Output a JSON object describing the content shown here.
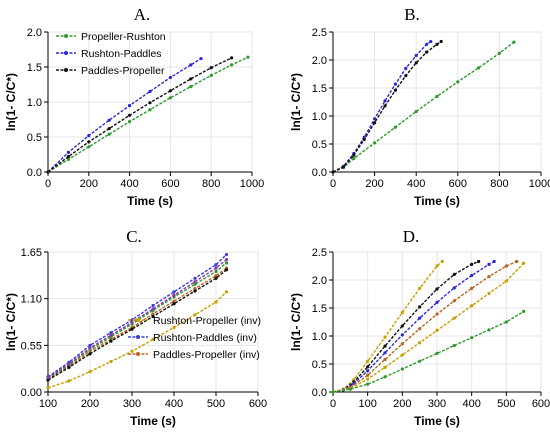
{
  "chart_data": [
    {
      "type": "line",
      "panel": "A.",
      "xlabel": "Time (s)",
      "ylabel": "ln(1- C/C*)",
      "xlim": [
        0,
        1000
      ],
      "ylim": [
        0,
        2.0
      ],
      "xticks": [
        0,
        200,
        400,
        600,
        800,
        1000
      ],
      "yticks": [
        0.0,
        0.5,
        1.0,
        1.5,
        2.0
      ],
      "ytick_labels": [
        "0.0",
        "0.5",
        "1.0",
        "1.5",
        "2.0"
      ],
      "grid": true,
      "legend": "top-left",
      "series": [
        {
          "name": "Propeller-Rushton",
          "color": "#2e9a2e",
          "x": [
            0,
            100,
            200,
            300,
            400,
            500,
            600,
            700,
            800,
            900,
            980
          ],
          "y": [
            0,
            0.18,
            0.36,
            0.54,
            0.72,
            0.89,
            1.06,
            1.22,
            1.38,
            1.53,
            1.64
          ]
        },
        {
          "name": "Rushton-Paddles",
          "color": "#2a2ad0",
          "x": [
            0,
            100,
            200,
            300,
            400,
            500,
            600,
            700,
            750
          ],
          "y": [
            0,
            0.28,
            0.52,
            0.74,
            0.95,
            1.15,
            1.35,
            1.53,
            1.62
          ]
        },
        {
          "name": "Paddles-Propeller",
          "color": "#111111",
          "x": [
            0,
            100,
            200,
            300,
            400,
            500,
            600,
            700,
            800,
            900
          ],
          "y": [
            0,
            0.22,
            0.43,
            0.62,
            0.81,
            0.99,
            1.16,
            1.33,
            1.49,
            1.63
          ]
        }
      ]
    },
    {
      "type": "line",
      "panel": "B.",
      "xlabel": "Time (s)",
      "ylabel": "ln(1- C/C*)",
      "xlim": [
        0,
        1000
      ],
      "ylim": [
        0,
        2.5
      ],
      "xticks": [
        0,
        200,
        400,
        600,
        800,
        1000
      ],
      "yticks": [
        0.0,
        0.5,
        1.0,
        1.5,
        2.0,
        2.5
      ],
      "ytick_labels": [
        "0.0",
        "0.5",
        "1.0",
        "1.5",
        "2.0",
        "2.5"
      ],
      "grid": true,
      "legend": "",
      "series": [
        {
          "color": "#2e9a2e",
          "x": [
            0,
            50,
            100,
            200,
            300,
            400,
            500,
            600,
            700,
            800,
            870
          ],
          "y": [
            0,
            0.08,
            0.24,
            0.52,
            0.8,
            1.08,
            1.35,
            1.61,
            1.86,
            2.12,
            2.32
          ]
        },
        {
          "color": "#2a2ad0",
          "x": [
            0,
            50,
            100,
            150,
            200,
            250,
            300,
            350,
            400,
            450,
            470
          ],
          "y": [
            0,
            0.1,
            0.33,
            0.62,
            0.95,
            1.27,
            1.57,
            1.85,
            2.08,
            2.28,
            2.33
          ]
        },
        {
          "color": "#111111",
          "x": [
            0,
            50,
            100,
            150,
            200,
            250,
            300,
            350,
            400,
            450,
            500,
            520
          ],
          "y": [
            0,
            0.09,
            0.3,
            0.58,
            0.88,
            1.18,
            1.46,
            1.72,
            1.95,
            2.14,
            2.28,
            2.33
          ]
        }
      ]
    },
    {
      "type": "line",
      "panel": "C.",
      "xlabel": "Time (s)",
      "ylabel": "ln(1- C/C*)",
      "xlim": [
        100,
        600
      ],
      "ylim": [
        0,
        1.65
      ],
      "xticks": [
        100,
        200,
        300,
        400,
        500,
        600
      ],
      "yticks": [
        0.0,
        0.55,
        1.1,
        1.65
      ],
      "ytick_labels": [
        "0.00",
        "0.55",
        "1.10",
        "1.65"
      ],
      "grid": true,
      "legend": "bottom-right",
      "series": [
        {
          "name": "Rushton-Propeller (inv)",
          "color": "#c8a000",
          "x": [
            100,
            150,
            200,
            250,
            300,
            350,
            400,
            450,
            500,
            525
          ],
          "y": [
            0.05,
            0.13,
            0.24,
            0.36,
            0.48,
            0.62,
            0.76,
            0.91,
            1.06,
            1.18
          ]
        },
        {
          "name": "Rushton-Paddles (inv)",
          "color": "#3a3ad8",
          "x": [
            100,
            150,
            200,
            250,
            300,
            350,
            400,
            450,
            500,
            525
          ],
          "y": [
            0.18,
            0.35,
            0.55,
            0.7,
            0.85,
            1.02,
            1.18,
            1.34,
            1.5,
            1.62
          ]
        },
        {
          "name": "Paddles-Propeller (inv)",
          "color": "#b5651d",
          "x": [
            100,
            150,
            200,
            250,
            300,
            350,
            400,
            450,
            500,
            525
          ],
          "y": [
            0.15,
            0.3,
            0.48,
            0.62,
            0.76,
            0.92,
            1.07,
            1.22,
            1.37,
            1.46
          ]
        },
        {
          "color": "#2e9a2e",
          "x": [
            100,
            150,
            200,
            250,
            300,
            350,
            400,
            450,
            500,
            525
          ],
          "y": [
            0.16,
            0.32,
            0.5,
            0.65,
            0.8,
            0.96,
            1.12,
            1.27,
            1.42,
            1.52
          ]
        },
        {
          "color": "#111111",
          "x": [
            100,
            150,
            200,
            250,
            300,
            350,
            400,
            450,
            500,
            525
          ],
          "y": [
            0.14,
            0.29,
            0.45,
            0.6,
            0.74,
            0.89,
            1.04,
            1.19,
            1.34,
            1.44
          ]
        },
        {
          "color": "#8a3aa8",
          "x": [
            100,
            150,
            200,
            250,
            300,
            350,
            400,
            450,
            500,
            525
          ],
          "y": [
            0.17,
            0.33,
            0.52,
            0.67,
            0.82,
            0.98,
            1.14,
            1.3,
            1.46,
            1.56
          ]
        }
      ]
    },
    {
      "type": "line",
      "panel": "D.",
      "xlabel": "Time (s)",
      "ylabel": "ln(1- C/C*)",
      "xlim": [
        0,
        600
      ],
      "ylim": [
        0,
        2.5
      ],
      "xticks": [
        0,
        100,
        200,
        300,
        400,
        500,
        600
      ],
      "yticks": [
        0.0,
        0.5,
        1.0,
        1.5,
        2.0,
        2.5
      ],
      "ytick_labels": [
        "0.0",
        "0.5",
        "1.0",
        "1.5",
        "2.0",
        "2.5"
      ],
      "grid": true,
      "legend": "",
      "series": [
        {
          "color": "#c8a000",
          "x": [
            0,
            30,
            60,
            100,
            150,
            200,
            250,
            300,
            315
          ],
          "y": [
            0,
            0.05,
            0.22,
            0.55,
            0.98,
            1.42,
            1.85,
            2.25,
            2.33
          ]
        },
        {
          "color": "#111111",
          "x": [
            0,
            30,
            60,
            100,
            150,
            200,
            250,
            300,
            350,
            400,
            420
          ],
          "y": [
            0,
            0.04,
            0.18,
            0.45,
            0.82,
            1.18,
            1.52,
            1.84,
            2.1,
            2.28,
            2.33
          ]
        },
        {
          "color": "#2a2ad0",
          "x": [
            0,
            30,
            60,
            100,
            150,
            200,
            250,
            300,
            350,
            400,
            450,
            465
          ],
          "y": [
            0,
            0.04,
            0.15,
            0.38,
            0.7,
            1.02,
            1.32,
            1.6,
            1.86,
            2.08,
            2.28,
            2.33
          ]
        },
        {
          "color": "#b5651d",
          "x": [
            0,
            50,
            100,
            150,
            200,
            250,
            300,
            350,
            400,
            450,
            500,
            530
          ],
          "y": [
            0,
            0.08,
            0.3,
            0.58,
            0.86,
            1.13,
            1.39,
            1.63,
            1.85,
            2.06,
            2.25,
            2.33
          ]
        },
        {
          "color": "#c8a000",
          "x": [
            0,
            50,
            100,
            150,
            200,
            250,
            300,
            350,
            400,
            450,
            500,
            550
          ],
          "y": [
            0,
            0.06,
            0.23,
            0.44,
            0.66,
            0.88,
            1.1,
            1.32,
            1.54,
            1.76,
            1.98,
            2.3
          ]
        },
        {
          "color": "#2e9a2e",
          "x": [
            0,
            50,
            100,
            150,
            200,
            250,
            300,
            350,
            400,
            450,
            500,
            550
          ],
          "y": [
            0,
            0.05,
            0.14,
            0.27,
            0.41,
            0.55,
            0.69,
            0.83,
            0.97,
            1.11,
            1.25,
            1.44
          ]
        }
      ]
    }
  ]
}
